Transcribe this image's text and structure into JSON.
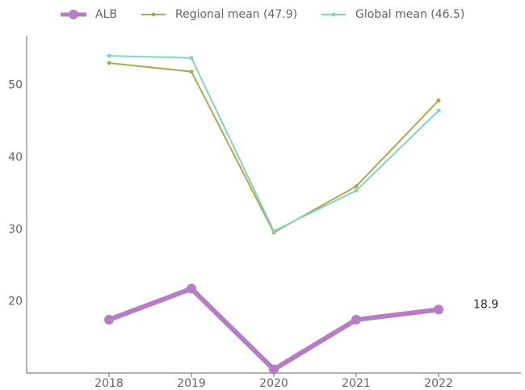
{
  "chart_data": {
    "type": "line",
    "x": [
      2018,
      2019,
      2020,
      2021,
      2022
    ],
    "series": [
      {
        "name": "ALB",
        "color": "#b87cc6",
        "values": [
          17.5,
          21.8,
          10.6,
          17.5,
          18.9
        ]
      },
      {
        "name": "Regional mean (47.9)",
        "color": "#aaaa4c",
        "values": [
          53.1,
          51.9,
          29.6,
          36.0,
          47.9
        ]
      },
      {
        "name": "Global mean (46.5)",
        "color": "#80d4c6",
        "values": [
          54.1,
          53.8,
          29.8,
          35.4,
          46.5
        ]
      }
    ],
    "xlim": [
      2017,
      2023
    ],
    "xticks": [
      2018,
      2019,
      2020,
      2021,
      2022
    ],
    "ylim": [
      10.1,
      56.8
    ],
    "yticks": [
      20,
      30,
      40,
      50
    ],
    "grid": false
  }
}
